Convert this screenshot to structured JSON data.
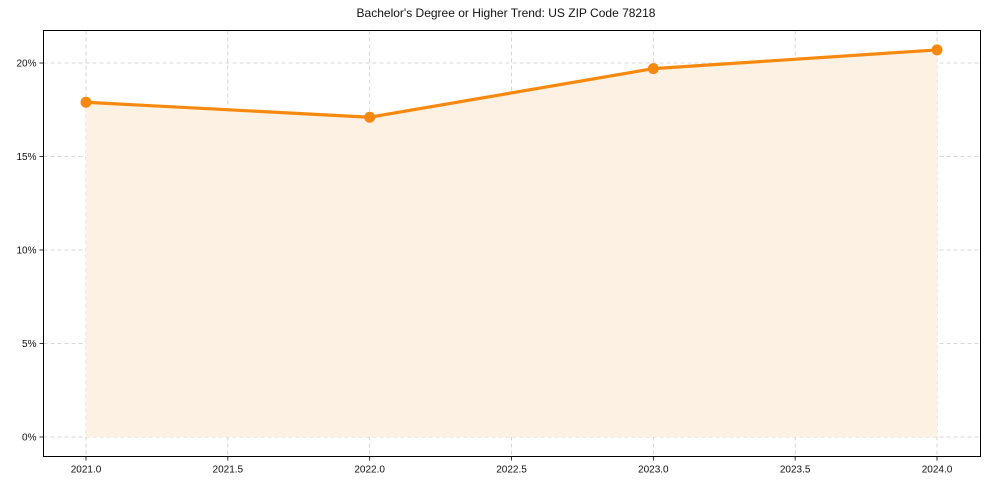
{
  "chart_data": {
    "type": "line",
    "title": "Bachelor's Degree or Higher Trend: US ZIP Code 78218",
    "xlabel": "",
    "ylabel": "",
    "x": [
      2021,
      2022,
      2023,
      2024
    ],
    "series": [
      {
        "name": "Bachelor's Degree or Higher",
        "values": [
          17.9,
          17.1,
          19.7,
          20.7
        ],
        "color": "#F8890F",
        "fill": "#FDF1E4"
      }
    ],
    "xticks": [
      "2021.0",
      "2021.5",
      "2022.0",
      "2022.5",
      "2023.0",
      "2023.5",
      "2024.0"
    ],
    "yticks": [
      "0%",
      "5%",
      "10%",
      "15%",
      "20%"
    ],
    "xlim": [
      2020.85,
      2024.15
    ],
    "ylim": [
      -1.0,
      21.8
    ],
    "grid": true,
    "legend": null
  },
  "colors": {
    "line": "#F8890F",
    "fill": "#FDF1E4",
    "grid": "#CCCCCC",
    "axis": "#000000"
  }
}
